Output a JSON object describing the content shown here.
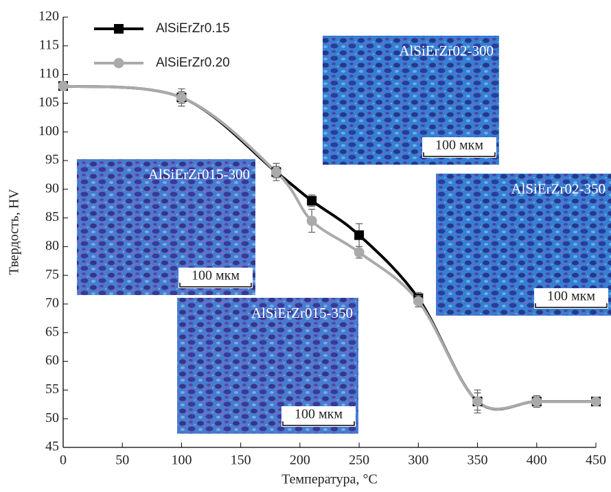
{
  "chart_data": {
    "type": "line",
    "xlabel": "Температура, °C",
    "ylabel": "Твердость, HV",
    "x": [
      0,
      100,
      180,
      210,
      250,
      300,
      350,
      400,
      450
    ],
    "series": [
      {
        "name": "AlSiErZr0.15",
        "color": "#000000",
        "marker": "square",
        "values": [
          108,
          106,
          93,
          88,
          82,
          71,
          53,
          53,
          53
        ],
        "errors": [
          0.5,
          1.5,
          1.5,
          1,
          2,
          1,
          2,
          1,
          0.5
        ]
      },
      {
        "name": "AlSiErZr0.20",
        "color": "#aaaaaa",
        "marker": "circle",
        "values": [
          108,
          106,
          93,
          84.5,
          79,
          70.5,
          53,
          53,
          53
        ],
        "errors": [
          0.5,
          1,
          1,
          2,
          1,
          1,
          1.5,
          1,
          0.5
        ]
      }
    ],
    "xlim": [
      0,
      450
    ],
    "xticks": [
      0,
      50,
      100,
      150,
      200,
      250,
      300,
      350,
      400,
      450
    ],
    "ylim": [
      45,
      120
    ],
    "yticks": [
      45,
      50,
      55,
      60,
      65,
      70,
      75,
      80,
      85,
      90,
      95,
      100,
      105,
      110,
      115,
      120
    ],
    "legend": "upper left",
    "insets": [
      {
        "label": "AlSiErZr02-300",
        "scale": "100 мкм"
      },
      {
        "label": "AlSiErZr015-300",
        "scale": "100 мкм"
      },
      {
        "label": "AlSiErZr02-350",
        "scale": "100 мкм"
      },
      {
        "label": "AlSiErZr015-350",
        "scale": "100 мкм"
      }
    ]
  }
}
